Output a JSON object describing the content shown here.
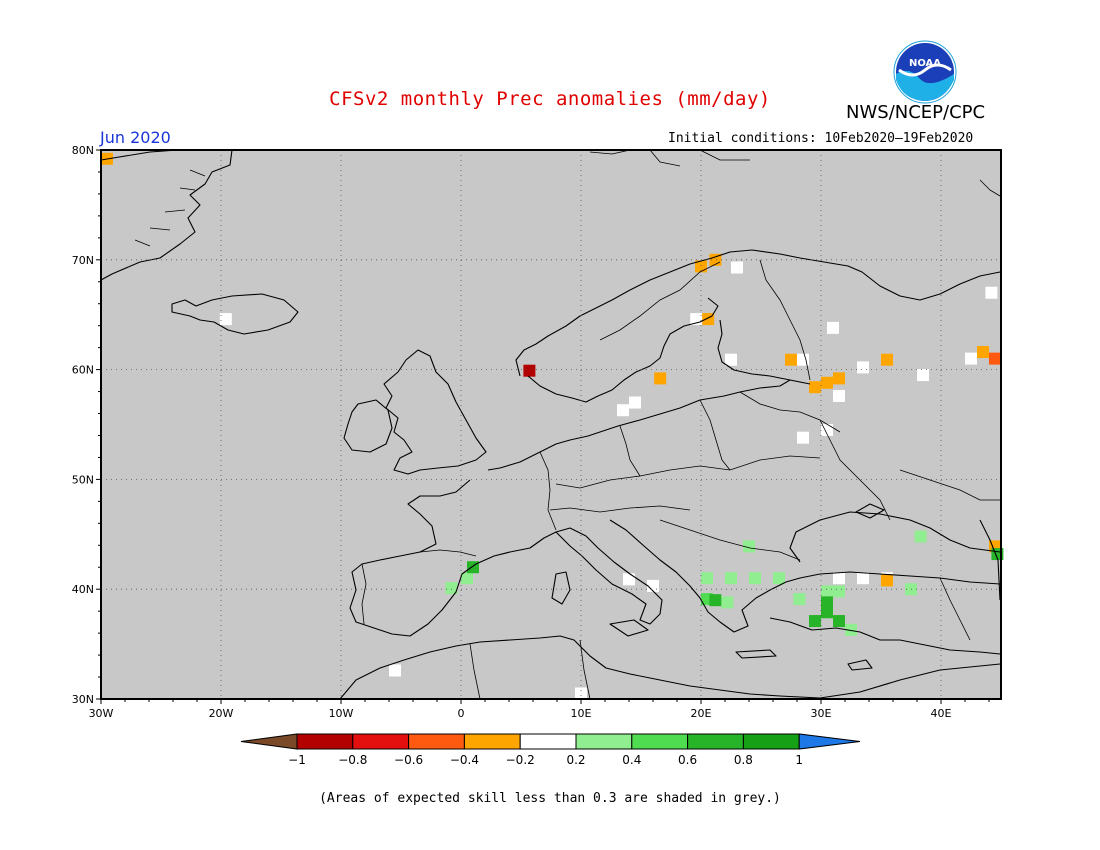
{
  "header": {
    "title": "CFSv2 monthly Prec anomalies (mm/day)",
    "agency": "NWS/NCEP/CPC",
    "logo_text": "NOAA",
    "month": "Jun 2020",
    "initial_conditions": "Initial conditions: 10Feb2020–19Feb2020"
  },
  "map": {
    "lon_range": [
      -30,
      45
    ],
    "lat_range": [
      30,
      80
    ],
    "lat_labels": [
      "30N",
      "40N",
      "50N",
      "60N",
      "70N",
      "80N"
    ],
    "lon_labels": [
      "30W",
      "20W",
      "10W",
      "0",
      "10E",
      "20E",
      "30E",
      "40E"
    ],
    "land_color": "#c8c8c8",
    "gridlines": "dotted"
  },
  "colorbar": {
    "ticks": [
      "−1",
      "−0.8",
      "−0.6",
      "−0.4",
      "−0.2",
      "0.2",
      "0.4",
      "0.6",
      "0.8",
      "1"
    ],
    "colors": [
      "#7a4a28",
      "#b30000",
      "#e41010",
      "#ff5a10",
      "#ffa500",
      "#ffffff",
      "#90ee90",
      "#50dc50",
      "#28b428",
      "#15a015",
      "#1e78e6"
    ]
  },
  "chart_data": {
    "type": "heatmap",
    "variable": "Prec anomalies (mm/day)",
    "cells": [
      {
        "lon": -29.5,
        "lat": 79.2,
        "v": -0.3
      },
      {
        "lon": -19.6,
        "lat": 64.6,
        "v": 0.0
      },
      {
        "lon": 5.7,
        "lat": 59.9,
        "v": -0.9
      },
      {
        "lon": 20.0,
        "lat": 69.4,
        "v": -0.3
      },
      {
        "lon": 21.2,
        "lat": 70.0,
        "v": -0.3
      },
      {
        "lon": 23.0,
        "lat": 69.3,
        "v": 0.0
      },
      {
        "lon": 19.6,
        "lat": 64.6,
        "v": 0.0
      },
      {
        "lon": 20.6,
        "lat": 64.6,
        "v": -0.3
      },
      {
        "lon": 22.5,
        "lat": 60.9,
        "v": 0.0
      },
      {
        "lon": 16.6,
        "lat": 59.2,
        "v": -0.3
      },
      {
        "lon": 14.5,
        "lat": 57.0,
        "v": 0.0
      },
      {
        "lon": 13.5,
        "lat": 56.3,
        "v": 0.0
      },
      {
        "lon": 27.5,
        "lat": 60.9,
        "v": -0.3
      },
      {
        "lon": 28.5,
        "lat": 60.9,
        "v": 0.0
      },
      {
        "lon": 30.5,
        "lat": 58.8,
        "v": -0.3
      },
      {
        "lon": 29.5,
        "lat": 58.4,
        "v": -0.3
      },
      {
        "lon": 31.5,
        "lat": 59.2,
        "v": -0.3
      },
      {
        "lon": 31.5,
        "lat": 57.6,
        "v": 0.0
      },
      {
        "lon": 30.5,
        "lat": 54.5,
        "v": 0.0
      },
      {
        "lon": 28.5,
        "lat": 53.8,
        "v": 0.0
      },
      {
        "lon": 35.5,
        "lat": 60.9,
        "v": -0.3
      },
      {
        "lon": 33.5,
        "lat": 60.2,
        "v": 0.0
      },
      {
        "lon": 38.5,
        "lat": 59.5,
        "v": 0.0
      },
      {
        "lon": 43.5,
        "lat": 61.6,
        "v": -0.3
      },
      {
        "lon": 44.5,
        "lat": 61.0,
        "v": -0.5
      },
      {
        "lon": 42.5,
        "lat": 61.0,
        "v": 0.0
      },
      {
        "lon": 44.2,
        "lat": 67.0,
        "v": 0.0
      },
      {
        "lon": 31.0,
        "lat": 63.8,
        "v": 0.0
      },
      {
        "lon": 0.5,
        "lat": 41.0,
        "v": 0.3
      },
      {
        "lon": -0.8,
        "lat": 40.1,
        "v": 0.3
      },
      {
        "lon": 1.0,
        "lat": 42.0,
        "v": 0.7
      },
      {
        "lon": 24.0,
        "lat": 43.9,
        "v": 0.3
      },
      {
        "lon": 20.5,
        "lat": 41.0,
        "v": 0.3
      },
      {
        "lon": 22.5,
        "lat": 41.0,
        "v": 0.3
      },
      {
        "lon": 24.5,
        "lat": 41.0,
        "v": 0.3
      },
      {
        "lon": 26.5,
        "lat": 41.0,
        "v": 0.3
      },
      {
        "lon": 20.5,
        "lat": 39.1,
        "v": 0.5
      },
      {
        "lon": 21.2,
        "lat": 39.0,
        "v": 0.7
      },
      {
        "lon": 22.2,
        "lat": 38.8,
        "v": 0.3
      },
      {
        "lon": 28.2,
        "lat": 39.1,
        "v": 0.3
      },
      {
        "lon": 30.5,
        "lat": 39.8,
        "v": 0.3
      },
      {
        "lon": 31.5,
        "lat": 39.8,
        "v": 0.3
      },
      {
        "lon": 30.5,
        "lat": 38.8,
        "v": 0.7
      },
      {
        "lon": 30.5,
        "lat": 37.9,
        "v": 0.7
      },
      {
        "lon": 29.5,
        "lat": 37.1,
        "v": 0.7
      },
      {
        "lon": 31.5,
        "lat": 37.1,
        "v": 0.7
      },
      {
        "lon": 32.5,
        "lat": 36.3,
        "v": 0.3
      },
      {
        "lon": 31.5,
        "lat": 41.0,
        "v": 0.0
      },
      {
        "lon": 33.5,
        "lat": 41.0,
        "v": 0.0
      },
      {
        "lon": 35.5,
        "lat": 41.0,
        "v": 0.0
      },
      {
        "lon": 35.5,
        "lat": 40.8,
        "v": -0.3
      },
      {
        "lon": 37.5,
        "lat": 40.0,
        "v": 0.3
      },
      {
        "lon": 44.5,
        "lat": 43.9,
        "v": -0.3
      },
      {
        "lon": 44.7,
        "lat": 43.2,
        "v": 0.7
      },
      {
        "lon": 38.3,
        "lat": 44.8,
        "v": 0.3
      },
      {
        "lon": 14.0,
        "lat": 40.9,
        "v": 0.0
      },
      {
        "lon": 16.0,
        "lat": 40.3,
        "v": 0.0
      },
      {
        "lon": -5.5,
        "lat": 32.6,
        "v": 0.0
      },
      {
        "lon": 10.0,
        "lat": 30.5,
        "v": 0.0
      }
    ]
  }
}
